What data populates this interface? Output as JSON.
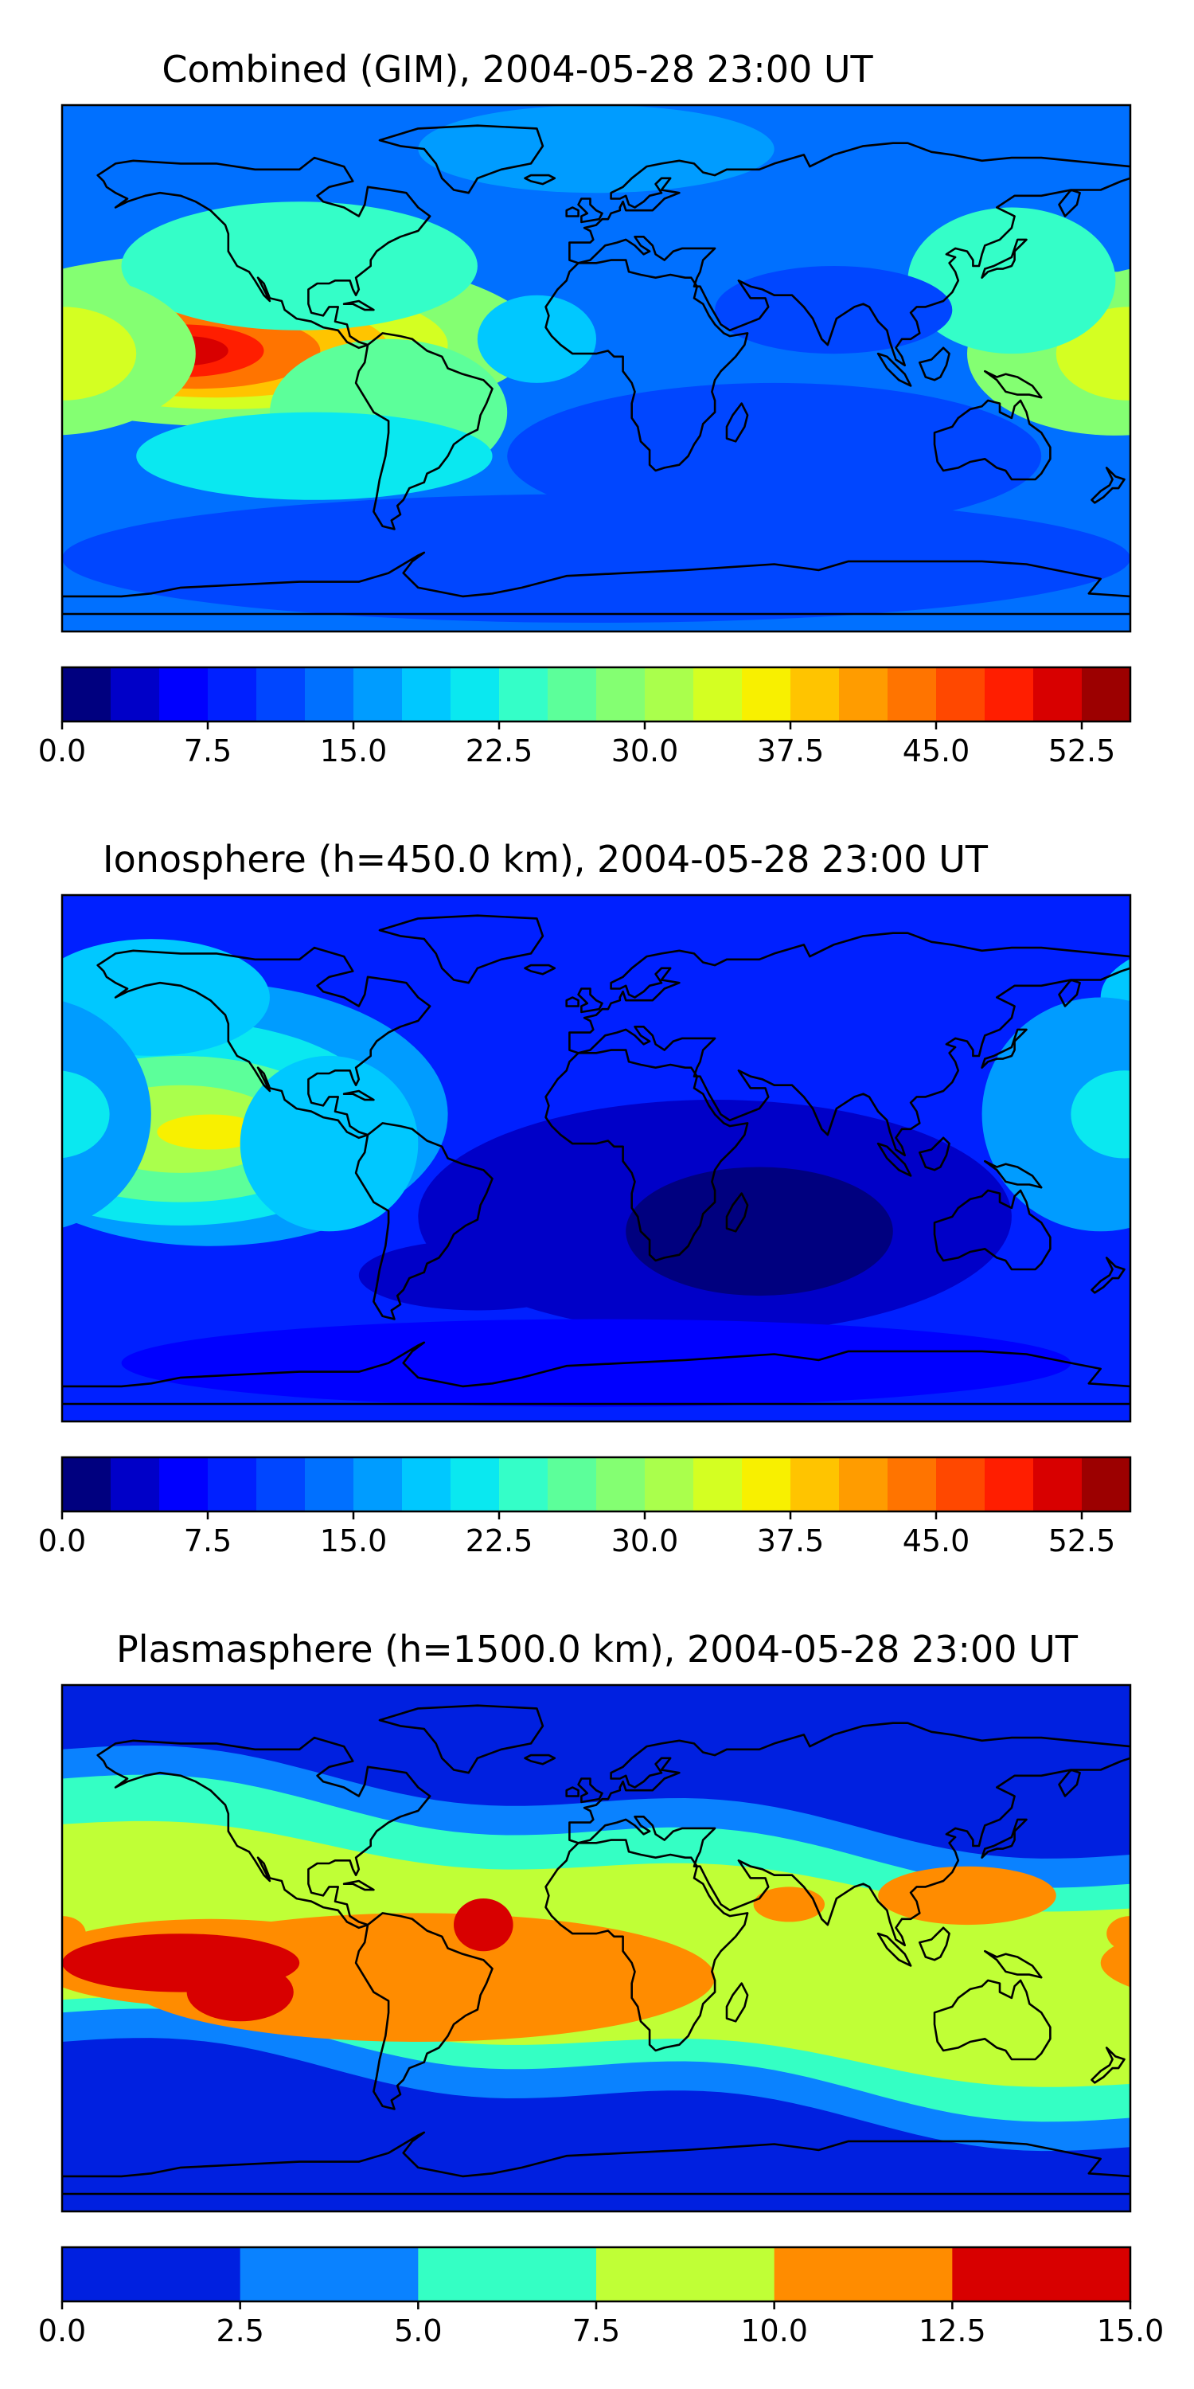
{
  "chart_data": [
    {
      "type": "heatmap",
      "title": "Combined (GIM), 2004-05-28 23:00 UT",
      "xlabel": "",
      "ylabel": "",
      "colorbar": {
        "levels": [
          0,
          2.5,
          5,
          7.5,
          10,
          12.5,
          15,
          17.5,
          20,
          22.5,
          25,
          27.5,
          30,
          32.5,
          35,
          37.5,
          40,
          42.5,
          45,
          47.5,
          50,
          52.5,
          55
        ],
        "ticks": [
          "0.0",
          "7.5",
          "15.0",
          "22.5",
          "30.0",
          "37.5",
          "45.0",
          "52.5"
        ],
        "tick_values": [
          0,
          7.5,
          15,
          22.5,
          30,
          37.5,
          45,
          52.5
        ]
      },
      "colors": [
        "#00007f",
        "#0000c8",
        "#0000ff",
        "#0020ff",
        "#0046ff",
        "#0070ff",
        "#009cff",
        "#00c8ff",
        "#0ae8f0",
        "#34fec8",
        "#5cff9a",
        "#84ff72",
        "#aaff4c",
        "#d4ff22",
        "#f8f000",
        "#ffc400",
        "#ff9c00",
        "#ff7400",
        "#ff4800",
        "#ff1e00",
        "#d80000",
        "#9c0000"
      ],
      "background_level": 5,
      "blobs": [
        {
          "lon": -120,
          "lat": 10,
          "rlon": 100,
          "rlat": 30,
          "level": 11
        },
        {
          "lon": -125,
          "lat": 8,
          "rlon": 75,
          "rlat": 22,
          "level": 13
        },
        {
          "lon": -128,
          "lat": 7,
          "rlon": 58,
          "rlat": 17,
          "level": 15
        },
        {
          "lon": -135,
          "lat": 6,
          "rlon": 42,
          "rlat": 13,
          "level": 17
        },
        {
          "lon": -140,
          "lat": 6,
          "rlon": 28,
          "rlat": 9,
          "level": 19
        },
        {
          "lon": -138,
          "lat": 6,
          "rlon": 14,
          "rlat": 5,
          "level": 20
        },
        {
          "lon": -100,
          "lat": 35,
          "rlon": 60,
          "rlat": 22,
          "level": 9
        },
        {
          "lon": -70,
          "lat": -15,
          "rlon": 40,
          "rlat": 25,
          "level": 10
        },
        {
          "lon": -95,
          "lat": -30,
          "rlon": 60,
          "rlat": 15,
          "level": 8
        },
        {
          "lon": 175,
          "lat": 5,
          "rlon": 50,
          "rlat": 28,
          "level": 11
        },
        {
          "lon": 180,
          "lat": 5,
          "rlon": 25,
          "rlat": 16,
          "level": 13
        },
        {
          "lon": 140,
          "lat": 30,
          "rlon": 35,
          "rlat": 25,
          "level": 9
        },
        {
          "lon": 0,
          "lat": 75,
          "rlon": 60,
          "rlat": 15,
          "level": 6
        },
        {
          "lon": 80,
          "lat": 20,
          "rlon": 40,
          "rlat": 15,
          "level": 4
        },
        {
          "lon": 60,
          "lat": -30,
          "rlon": 90,
          "rlat": 25,
          "level": 4
        },
        {
          "lon": 0,
          "lat": -65,
          "rlon": 180,
          "rlat": 22,
          "level": 4
        },
        {
          "lon": -20,
          "lat": 10,
          "rlon": 20,
          "rlat": 15,
          "level": 7
        }
      ]
    },
    {
      "type": "heatmap",
      "title": "Ionosphere  (h=450.0 km), 2004-05-28 23:00 UT",
      "xlabel": "",
      "ylabel": "",
      "colorbar": {
        "levels": [
          0,
          2.5,
          5,
          7.5,
          10,
          12.5,
          15,
          17.5,
          20,
          22.5,
          25,
          27.5,
          30,
          32.5,
          35,
          37.5,
          40,
          42.5,
          45,
          47.5,
          50,
          52.5,
          55
        ],
        "ticks": [
          "0.0",
          "7.5",
          "15.0",
          "22.5",
          "30.0",
          "37.5",
          "45.0",
          "52.5"
        ],
        "tick_values": [
          0,
          7.5,
          15,
          22.5,
          30,
          37.5,
          45,
          52.5
        ]
      },
      "colors": [
        "#00007f",
        "#0000c8",
        "#0000ff",
        "#0020ff",
        "#0046ff",
        "#0070ff",
        "#009cff",
        "#00c8ff",
        "#0ae8f0",
        "#34fec8",
        "#5cff9a",
        "#84ff72",
        "#aaff4c",
        "#d4ff22",
        "#f8f000",
        "#ffc400",
        "#ff9c00",
        "#ff7400",
        "#ff4800",
        "#ff1e00",
        "#d80000",
        "#9c0000"
      ],
      "background_level": 3,
      "blobs": [
        {
          "lon": -130,
          "lat": 15,
          "rlon": 80,
          "rlat": 45,
          "level": 6
        },
        {
          "lon": -140,
          "lat": 12,
          "rlon": 70,
          "rlat": 35,
          "level": 8
        },
        {
          "lon": -140,
          "lat": 10,
          "rlon": 55,
          "rlat": 25,
          "level": 10
        },
        {
          "lon": -140,
          "lat": 10,
          "rlon": 35,
          "rlat": 15,
          "level": 12
        },
        {
          "lon": -130,
          "lat": 9,
          "rlon": 18,
          "rlat": 6,
          "level": 14
        },
        {
          "lon": -90,
          "lat": 5,
          "rlon": 30,
          "rlat": 30,
          "level": 7
        },
        {
          "lon": -150,
          "lat": 55,
          "rlon": 40,
          "rlat": 20,
          "level": 7
        },
        {
          "lon": 170,
          "lat": 15,
          "rlon": 40,
          "rlat": 40,
          "level": 6
        },
        {
          "lon": 178,
          "lat": 15,
          "rlon": 18,
          "rlat": 15,
          "level": 8
        },
        {
          "lon": 40,
          "lat": -20,
          "rlon": 100,
          "rlat": 40,
          "level": 1
        },
        {
          "lon": 55,
          "lat": -25,
          "rlon": 45,
          "rlat": 22,
          "level": 0
        },
        {
          "lon": -40,
          "lat": -40,
          "rlon": 40,
          "rlat": 12,
          "level": 1
        },
        {
          "lon": 0,
          "lat": -70,
          "rlon": 160,
          "rlat": 15,
          "level": 2
        }
      ]
    },
    {
      "type": "heatmap",
      "title": "Plasmasphere (h=1500.0 km), 2004-05-28 23:00 UT",
      "xlabel": "",
      "ylabel": "",
      "colorbar": {
        "levels": [
          0,
          2.5,
          5,
          7.5,
          10,
          12.5,
          15
        ],
        "ticks": [
          "0.0",
          "2.5",
          "5.0",
          "7.5",
          "10.0",
          "12.5",
          "15.0"
        ],
        "tick_values": [
          0,
          2.5,
          5,
          7.5,
          10,
          12.5,
          15
        ]
      },
      "colors": [
        "#0020e0",
        "#0a82ff",
        "#34ffc4",
        "#c0ff36",
        "#ff8c00",
        "#d80000"
      ],
      "background_level": 0,
      "bands": [
        {
          "lat": 0,
          "half_width": 50,
          "tilt": -0.1,
          "wave_amp": 5,
          "level": 1
        },
        {
          "lat": 0,
          "half_width": 40,
          "tilt": -0.1,
          "wave_amp": 5,
          "level": 2
        },
        {
          "lat": -2,
          "half_width": 30,
          "tilt": -0.08,
          "wave_amp": 4,
          "level": 3
        }
      ],
      "blobs": [
        {
          "lon": -60,
          "lat": -10,
          "rlon": 100,
          "rlat": 22,
          "level": 4
        },
        {
          "lon": -130,
          "lat": -5,
          "rlon": 60,
          "rlat": 15,
          "level": 4
        },
        {
          "lon": 65,
          "lat": 15,
          "rlon": 12,
          "rlat": 6,
          "level": 4
        },
        {
          "lon": 125,
          "lat": 18,
          "rlon": 30,
          "rlat": 10,
          "level": 4
        },
        {
          "lon": 180,
          "lat": 5,
          "rlon": 8,
          "rlat": 6,
          "level": 4
        },
        {
          "lon": -140,
          "lat": -5,
          "rlon": 40,
          "rlat": 10,
          "level": 5
        },
        {
          "lon": -120,
          "lat": -15,
          "rlon": 18,
          "rlat": 10,
          "level": 5
        },
        {
          "lon": -38,
          "lat": 8,
          "rlon": 10,
          "rlat": 9,
          "level": 5
        }
      ]
    }
  ]
}
